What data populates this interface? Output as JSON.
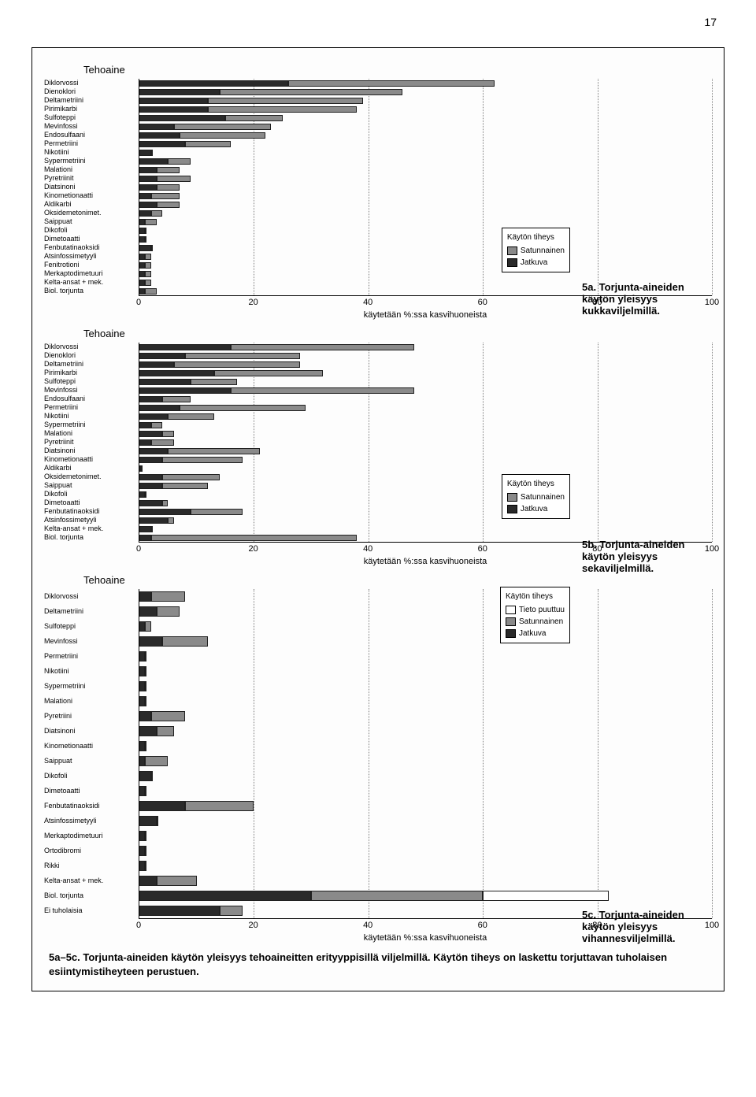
{
  "page_number": "17",
  "colors": {
    "jatkuva": "#2a2a2a",
    "satunnainen": "#8a8a8a",
    "tieto_puuttuu": "#ffffff",
    "grid": "#808080",
    "border": "#000000",
    "background": "#fdfdfd"
  },
  "x_axis": {
    "min": 0,
    "max": 100,
    "ticks": [
      0,
      20,
      40,
      60,
      80,
      100
    ],
    "label": "käytetään %:ssa kasvihuoneista"
  },
  "chart5a": {
    "title_left": "Tehoaine",
    "legend": {
      "title": "Käytön tiheys",
      "items": [
        {
          "label": "Satunnainen",
          "color": "#8a8a8a"
        },
        {
          "label": "Jatkuva",
          "color": "#2a2a2a"
        }
      ]
    },
    "caption": "5a. Torjunta-aineiden käytön yleisyys kukkaviljelmillä.",
    "series": [
      {
        "label": "Diklorvossi",
        "jatkuva": 26,
        "satunnainen": 36
      },
      {
        "label": "Dienoklori",
        "jatkuva": 14,
        "satunnainen": 32
      },
      {
        "label": "Deltametriini",
        "jatkuva": 12,
        "satunnainen": 27
      },
      {
        "label": "Pirimikarbi",
        "jatkuva": 12,
        "satunnainen": 26
      },
      {
        "label": "Sulfoteppi",
        "jatkuva": 15,
        "satunnainen": 10
      },
      {
        "label": "Mevinfossi",
        "jatkuva": 6,
        "satunnainen": 17
      },
      {
        "label": "Endosulfaani",
        "jatkuva": 7,
        "satunnainen": 15
      },
      {
        "label": "Permetriini",
        "jatkuva": 8,
        "satunnainen": 8
      },
      {
        "label": "Nikotiini",
        "jatkuva": 2,
        "satunnainen": 0
      },
      {
        "label": "Sypermetriini",
        "jatkuva": 5,
        "satunnainen": 4
      },
      {
        "label": "Malationi",
        "jatkuva": 3,
        "satunnainen": 4
      },
      {
        "label": "Pyretriinit",
        "jatkuva": 3,
        "satunnainen": 6
      },
      {
        "label": "Diatsinoni",
        "jatkuva": 3,
        "satunnainen": 4
      },
      {
        "label": "Kinometionaatti",
        "jatkuva": 2,
        "satunnainen": 5
      },
      {
        "label": "Aldikarbi",
        "jatkuva": 3,
        "satunnainen": 4
      },
      {
        "label": "Oksidemetonimet.",
        "jatkuva": 2,
        "satunnainen": 2
      },
      {
        "label": "Saippuat",
        "jatkuva": 1,
        "satunnainen": 2
      },
      {
        "label": "Dikofoli",
        "jatkuva": 1,
        "satunnainen": 0
      },
      {
        "label": "Dimetoaatti",
        "jatkuva": 1,
        "satunnainen": 0
      },
      {
        "label": "Fenbutatinaoksidi",
        "jatkuva": 2,
        "satunnainen": 0
      },
      {
        "label": "Atsinfossimetyyli",
        "jatkuva": 1,
        "satunnainen": 1
      },
      {
        "label": "Fenitrotioni",
        "jatkuva": 1,
        "satunnainen": 1
      },
      {
        "label": "Merkaptodimetuuri",
        "jatkuva": 1,
        "satunnainen": 1
      },
      {
        "label": "Kelta-ansat + mek.",
        "jatkuva": 1,
        "satunnainen": 1
      },
      {
        "label": "Biol. torjunta",
        "jatkuva": 1,
        "satunnainen": 2
      }
    ]
  },
  "chart5b": {
    "title_left": "Tehoaine",
    "legend": {
      "title": "Käytön tiheys",
      "items": [
        {
          "label": "Satunnainen",
          "color": "#8a8a8a"
        },
        {
          "label": "Jatkuva",
          "color": "#2a2a2a"
        }
      ]
    },
    "caption": "5b. Torjunta-aineiden käytön yleisyys sekaviljelmillä.",
    "series": [
      {
        "label": "Diklorvossi",
        "jatkuva": 16,
        "satunnainen": 32
      },
      {
        "label": "Dienoklori",
        "jatkuva": 8,
        "satunnainen": 20
      },
      {
        "label": "Deltametriini",
        "jatkuva": 6,
        "satunnainen": 22
      },
      {
        "label": "Pirimikarbi",
        "jatkuva": 13,
        "satunnainen": 19
      },
      {
        "label": "Sulfoteppi",
        "jatkuva": 9,
        "satunnainen": 8
      },
      {
        "label": "Mevinfossi",
        "jatkuva": 16,
        "satunnainen": 32
      },
      {
        "label": "Endosulfaani",
        "jatkuva": 4,
        "satunnainen": 5
      },
      {
        "label": "Permetriini",
        "jatkuva": 7,
        "satunnainen": 22
      },
      {
        "label": "Nikotiini",
        "jatkuva": 5,
        "satunnainen": 8
      },
      {
        "label": "Sypermetriini",
        "jatkuva": 2,
        "satunnainen": 2
      },
      {
        "label": "Malationi",
        "jatkuva": 4,
        "satunnainen": 2
      },
      {
        "label": "Pyretriinit",
        "jatkuva": 2,
        "satunnainen": 4
      },
      {
        "label": "Diatsinoni",
        "jatkuva": 5,
        "satunnainen": 16
      },
      {
        "label": "Kinometionaatti",
        "jatkuva": 4,
        "satunnainen": 14
      },
      {
        "label": "Aldikarbi",
        "jatkuva": 0,
        "satunnainen": 0
      },
      {
        "label": "Oksidemetonimet.",
        "jatkuva": 4,
        "satunnainen": 10
      },
      {
        "label": "Saippuat",
        "jatkuva": 4,
        "satunnainen": 8
      },
      {
        "label": "Dikofoli",
        "jatkuva": 1,
        "satunnainen": 0
      },
      {
        "label": "Dimetoaatti",
        "jatkuva": 4,
        "satunnainen": 1
      },
      {
        "label": "Fenbutatinaoksidi",
        "jatkuva": 9,
        "satunnainen": 9
      },
      {
        "label": "Atsinfossimetyyli",
        "jatkuva": 5,
        "satunnainen": 1
      },
      {
        "label": "Kelta-ansat + mek.",
        "jatkuva": 2,
        "satunnainen": 0
      },
      {
        "label": "Biol. torjunta",
        "jatkuva": 2,
        "satunnainen": 36
      }
    ]
  },
  "chart5c": {
    "title_left": "Tehoaine",
    "legend": {
      "title": "Käytön tiheys",
      "items": [
        {
          "label": "Tieto puuttuu",
          "color": "#ffffff"
        },
        {
          "label": "Satunnainen",
          "color": "#8a8a8a"
        },
        {
          "label": "Jatkuva",
          "color": "#2a2a2a"
        }
      ]
    },
    "caption": "5c. Torjunta-aineiden käytön yleisyys vihannesviljelmillä.",
    "x_axis_label": "käytetään %:ssa kasvihuoneista",
    "series": [
      {
        "label": "Diklorvossi",
        "jatkuva": 2,
        "satunnainen": 6,
        "tieto": 0
      },
      {
        "label": "Deltametriini",
        "jatkuva": 3,
        "satunnainen": 4,
        "tieto": 0
      },
      {
        "label": "Sulfoteppi",
        "jatkuva": 1,
        "satunnainen": 1,
        "tieto": 0
      },
      {
        "label": "Mevinfossi",
        "jatkuva": 4,
        "satunnainen": 8,
        "tieto": 0
      },
      {
        "label": "Permetriini",
        "jatkuva": 1,
        "satunnainen": 0,
        "tieto": 0
      },
      {
        "label": "Nikotiini",
        "jatkuva": 1,
        "satunnainen": 0,
        "tieto": 0
      },
      {
        "label": "Sypermetriini",
        "jatkuva": 1,
        "satunnainen": 0,
        "tieto": 0
      },
      {
        "label": "Malationi",
        "jatkuva": 1,
        "satunnainen": 0,
        "tieto": 0
      },
      {
        "label": "Pyretriini",
        "jatkuva": 2,
        "satunnainen": 6,
        "tieto": 0
      },
      {
        "label": "Diatsinoni",
        "jatkuva": 3,
        "satunnainen": 3,
        "tieto": 0
      },
      {
        "label": "Kinometionaatti",
        "jatkuva": 1,
        "satunnainen": 0,
        "tieto": 0
      },
      {
        "label": "Saippuat",
        "jatkuva": 1,
        "satunnainen": 4,
        "tieto": 0
      },
      {
        "label": "Dikofoli",
        "jatkuva": 2,
        "satunnainen": 0,
        "tieto": 0
      },
      {
        "label": "Dimetoaatti",
        "jatkuva": 1,
        "satunnainen": 0,
        "tieto": 0
      },
      {
        "label": "Fenbutatinaoksidi",
        "jatkuva": 8,
        "satunnainen": 12,
        "tieto": 0
      },
      {
        "label": "Atsinfossimetyyli",
        "jatkuva": 3,
        "satunnainen": 0,
        "tieto": 0
      },
      {
        "label": "Merkaptodimetuuri",
        "jatkuva": 1,
        "satunnainen": 0,
        "tieto": 0
      },
      {
        "label": "Ortodibromi",
        "jatkuva": 1,
        "satunnainen": 0,
        "tieto": 0
      },
      {
        "label": "Rikki",
        "jatkuva": 1,
        "satunnainen": 0,
        "tieto": 0
      },
      {
        "label": "Kelta-ansat + mek.",
        "jatkuva": 3,
        "satunnainen": 7,
        "tieto": 0
      },
      {
        "label": "Biol. torjunta",
        "jatkuva": 30,
        "satunnainen": 30,
        "tieto": 22
      },
      {
        "label": "Ei tuholaisia",
        "jatkuva": 14,
        "satunnainen": 4,
        "tieto": 0
      }
    ]
  },
  "bottom_caption": "5a–5c. Torjunta-aineiden käytön yleisyys tehoaineitten erityyppisillä viljelmillä. Käytön tiheys on laskettu torjuttavan tuholaisen esiintymistiheyteen perustuen."
}
